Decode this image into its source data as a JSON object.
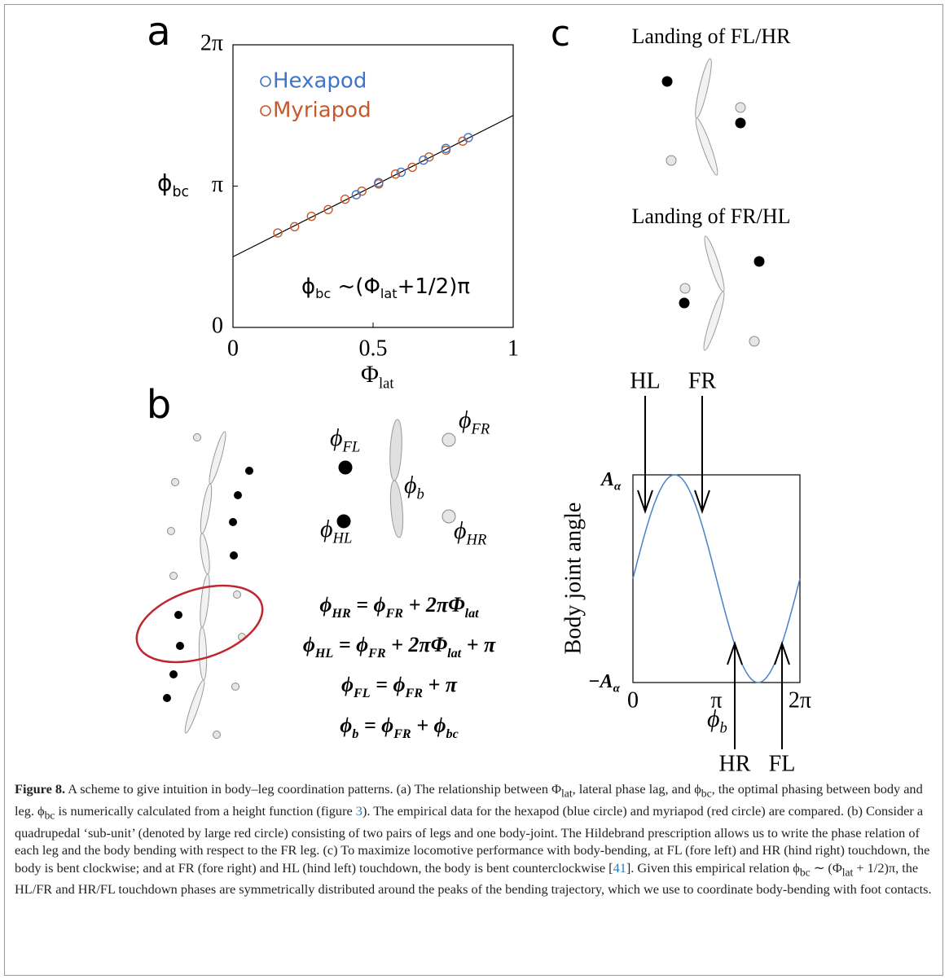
{
  "chart_data": {
    "type": "scatter",
    "panel_label": "a",
    "series": [
      {
        "name": "Hexapod",
        "color": "#3f74c8",
        "x": [
          0.44,
          0.52,
          0.6,
          0.68,
          0.76,
          0.84
        ],
        "values": [
          2.95,
          3.22,
          3.45,
          3.72,
          3.98,
          4.22
        ]
      },
      {
        "name": "Myriapod",
        "color": "#c8582a",
        "x": [
          0.16,
          0.22,
          0.28,
          0.34,
          0.4,
          0.46,
          0.52,
          0.58,
          0.64,
          0.7,
          0.76,
          0.82
        ],
        "values": [
          2.1,
          2.24,
          2.47,
          2.62,
          2.85,
          3.03,
          3.19,
          3.41,
          3.56,
          3.79,
          3.94,
          4.14
        ]
      }
    ],
    "fit": {
      "x": [
        0,
        1
      ],
      "values": [
        1.5708,
        4.7124
      ],
      "color": "#000000"
    },
    "xlim": [
      0,
      1
    ],
    "xticks": [
      0,
      0.5,
      1
    ],
    "ylim": [
      0,
      6.28319
    ],
    "yticks": [
      0,
      {
        "value": 3.14159,
        "label": "π"
      },
      {
        "value": 6.28319,
        "label": "2π"
      }
    ],
    "x_label": [
      {
        "text": "Φ"
      },
      {
        "sub": "lat"
      }
    ],
    "y_label": [
      {
        "text": "ϕ"
      },
      {
        "sub": "bc"
      }
    ],
    "annotation": [
      {
        "text": "ϕ"
      },
      {
        "sub": "bc"
      },
      {
        "text": " ~(Φ"
      },
      {
        "sub": "lat"
      },
      {
        "text": "+1/2)π"
      }
    ]
  },
  "panel_b": {
    "label": "b",
    "leg_labels": [
      [
        {
          "text": "ϕ"
        },
        {
          "sub": "FL"
        }
      ],
      [
        {
          "text": "ϕ"
        },
        {
          "sub": "HL"
        }
      ],
      [
        {
          "text": "ϕ"
        },
        {
          "sub": "FR"
        }
      ],
      [
        {
          "text": "ϕ"
        },
        {
          "sub": "HR"
        }
      ],
      [
        {
          "text": "ϕ"
        },
        {
          "sub": "b"
        }
      ]
    ],
    "equations": [
      [
        {
          "text": "ϕ"
        },
        {
          "sub": "HR"
        },
        {
          "text": " = ϕ"
        },
        {
          "sub": "FR"
        },
        {
          "text": " + 2πΦ"
        },
        {
          "sub": "lat"
        }
      ],
      [
        {
          "text": "ϕ"
        },
        {
          "sub": "HL"
        },
        {
          "text": " = ϕ"
        },
        {
          "sub": "FR"
        },
        {
          "text": " + 2πΦ"
        },
        {
          "sub": "lat"
        },
        {
          "text": " + π"
        }
      ],
      [
        {
          "text": "ϕ"
        },
        {
          "sub": "FL"
        },
        {
          "text": " = ϕ"
        },
        {
          "sub": "FR"
        },
        {
          "text": " + π"
        }
      ],
      [
        {
          "text": "ϕ"
        },
        {
          "sub": "b"
        },
        {
          "text": " = ϕ"
        },
        {
          "sub": "FR"
        },
        {
          "text": " + ϕ"
        },
        {
          "sub": "bc"
        }
      ]
    ]
  },
  "panel_c": {
    "label": "c",
    "landing_1": "Landing of FL/HR",
    "landing_2": "Landing of FR/HL",
    "arrows_top": [
      "HL",
      "FR"
    ],
    "arrows_bottom": [
      "HR",
      "FL"
    ],
    "y_label": "Body joint angle",
    "y_ticks": [
      [
        {
          "text": "A"
        },
        {
          "sub": "α"
        }
      ],
      [
        {
          "text": "−A"
        },
        {
          "sub": "α"
        }
      ]
    ],
    "x_ticks": [
      "0",
      "π",
      "2π"
    ],
    "x_label": [
      {
        "text": "ϕ"
      },
      {
        "sub": "b"
      }
    ]
  },
  "caption": {
    "label": "Figure 8.",
    "segments": [
      {
        "text": "  A scheme to give intuition in body–leg coordination patterns. (a) The relationship between Φ"
      },
      {
        "sub": "lat"
      },
      {
        "text": ", lateral phase lag, and ϕ"
      },
      {
        "sub": "bc"
      },
      {
        "text": ", the optimal phasing between body and leg. ϕ"
      },
      {
        "sub": "bc"
      },
      {
        "text": " is numerically calculated from a height function (figure "
      },
      {
        "link": "3"
      },
      {
        "text": "). The empirical data for the hexapod (blue circle) and myriapod (red circle) are compared. (b) Consider a quadrupedal ‘sub-unit’ (denoted by large red circle) consisting of two pairs of legs and one body-joint. The Hildebrand prescription allows us to write the phase relation of each leg and the body bending with respect to the FR leg. (c) To maximize locomotive performance with body-bending, at FL (fore left) and HR (hind right) touchdown, the body is bent clockwise; and at FR (fore right) and HL (hind left) touchdown, the body is bent counterclockwise ["
      },
      {
        "link": "41"
      },
      {
        "text": "]. Given this empirical relation ϕ"
      },
      {
        "sub": "bc"
      },
      {
        "text": " ∼ (Φ"
      },
      {
        "sub": "lat"
      },
      {
        "text": " + 1/2)π, the HL/FR and HR/FL touchdown phases are symmetrically distributed around the peaks of the bending trajectory, which we use to coordinate body-bending with foot contacts."
      }
    ]
  }
}
